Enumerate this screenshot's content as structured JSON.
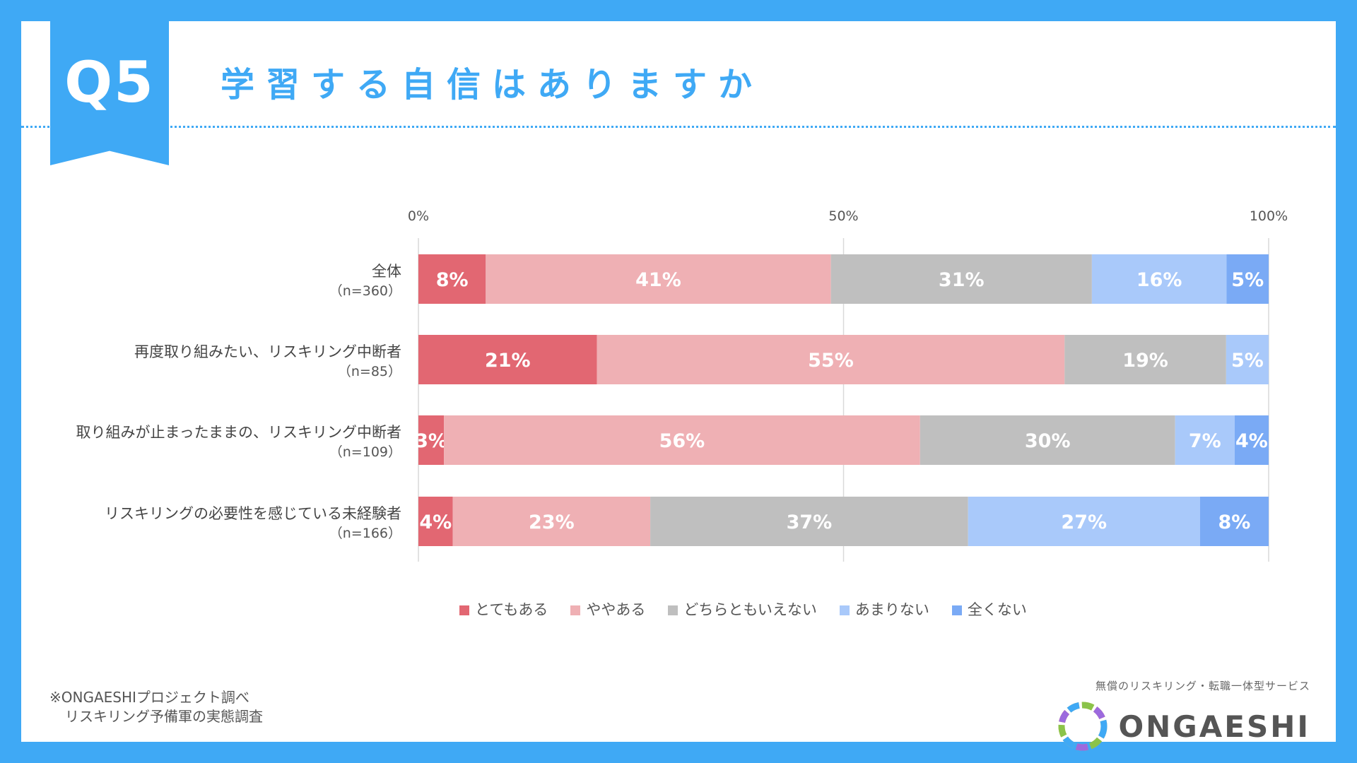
{
  "header": {
    "question_no": "Q5",
    "title": "学習する自信はありますか"
  },
  "chart_data": {
    "type": "bar",
    "orientation": "horizontal",
    "stacked": true,
    "percent": true,
    "xlim": [
      0,
      100
    ],
    "ticks": [
      {
        "value": 0,
        "label": "0%"
      },
      {
        "value": 50,
        "label": "50%"
      },
      {
        "value": 100,
        "label": "100%"
      }
    ],
    "categories": [
      {
        "name": "全体",
        "n": "（n=360）"
      },
      {
        "name": "再度取り組みたい、リスキリング中断者",
        "n": "（n=85）"
      },
      {
        "name": "取り組みが止まったままの、リスキリング中断者",
        "n": "（n=109）"
      },
      {
        "name": "リスキリングの必要性を感じている未経験者",
        "n": "（n=166）"
      }
    ],
    "series": [
      {
        "name": "とてもある",
        "color": "#e26772",
        "values": [
          8,
          21,
          3,
          4
        ],
        "labels": [
          "8%",
          "21%",
          "3%",
          "4%"
        ]
      },
      {
        "name": "ややある",
        "color": "#efb0b4",
        "values": [
          41,
          55,
          56,
          23
        ],
        "labels": [
          "41%",
          "55%",
          "56%",
          "23%"
        ]
      },
      {
        "name": "どちらともいえない",
        "color": "#bfbfbf",
        "values": [
          31,
          19,
          30,
          37
        ],
        "labels": [
          "31%",
          "19%",
          "30%",
          "37%"
        ]
      },
      {
        "name": "あまりない",
        "color": "#a9c9fa",
        "values": [
          16,
          5,
          7,
          27
        ],
        "labels": [
          "16%",
          "5%",
          "7%",
          "27%"
        ]
      },
      {
        "name": "全くない",
        "color": "#7aaaf5",
        "values": [
          5,
          0,
          4,
          8
        ],
        "labels": [
          "5%",
          "",
          "4%",
          "8%"
        ]
      }
    ]
  },
  "footer": {
    "note_line1": "※ONGAESHIプロジェクト調べ",
    "note_line2": "リスキリング予備軍の実態調査",
    "service_text": "無償のリスキリング・転職一体型サービス",
    "brand": "ONGAESHI"
  },
  "colors": {
    "background": "#3fa9f5",
    "accent": "#3fa9f5"
  }
}
